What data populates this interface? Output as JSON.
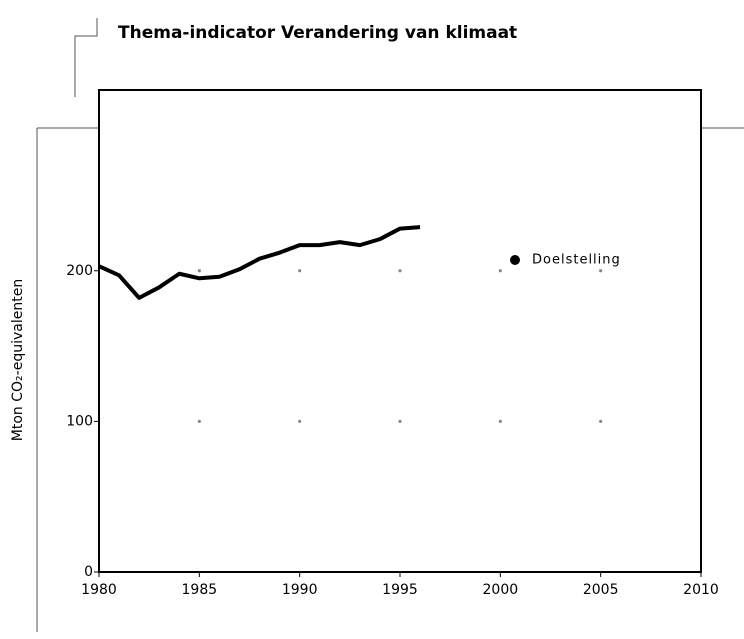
{
  "chart_data": {
    "type": "line",
    "title": "Thema-indicator Verandering van klimaat",
    "ylabel": "Mton CO₂-equivalenten",
    "x": [
      1980,
      1981,
      1982,
      1983,
      1984,
      1985,
      1986,
      1987,
      1988,
      1989,
      1990,
      1991,
      1992,
      1993,
      1994,
      1995,
      1996
    ],
    "series": [
      {
        "color": "#000000",
        "values": [
          203,
          197,
          182,
          189,
          198,
          195,
          196,
          201,
          208,
          212,
          217,
          217,
          219,
          217,
          221,
          228,
          229
        ]
      },
      {
        "name": "Doelstelling",
        "color": "#000000",
        "values": [
          null,
          null,
          null,
          null,
          null,
          null,
          null,
          null,
          null,
          null,
          null,
          null,
          null,
          null,
          null,
          null,
          null
        ]
      }
    ],
    "xlim": [
      1980,
      2010
    ],
    "xticks": [
      1980,
      1985,
      1990,
      1995,
      2000,
      2005,
      2010
    ],
    "ylim": [
      0,
      320
    ],
    "yticks": [
      0,
      100,
      200
    ],
    "grid": "dots",
    "legend": "upper right"
  }
}
